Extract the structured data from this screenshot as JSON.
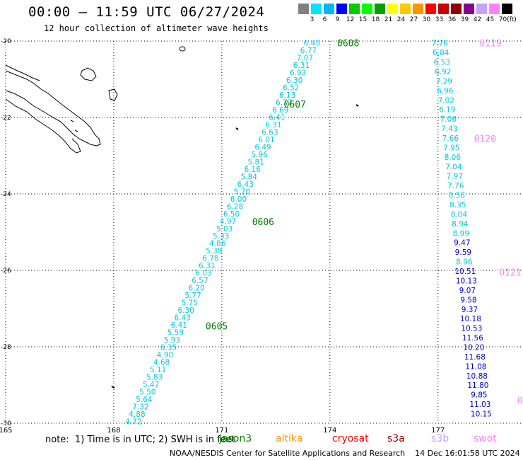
{
  "header": {
    "title": "00:00 – 11:59 UTC 06/27/2024",
    "subtitle": "12 hour collection of altimeter wave heights"
  },
  "colorbar": {
    "unit": "(ft)",
    "labels": [
      "3",
      "6",
      "9",
      "12",
      "15",
      "18",
      "21",
      "24",
      "27",
      "30",
      "33",
      "36",
      "39",
      "42",
      "45",
      "70"
    ],
    "colors": [
      "#808080",
      "#00e5ff",
      "#00b7ff",
      "#0000ff",
      "#00cc00",
      "#00ff00",
      "#00a000",
      "#ffff00",
      "#ffc800",
      "#ff9600",
      "#ff0000",
      "#c80000",
      "#900000",
      "#8b008b",
      "#c8a0ff",
      "#ff80ff",
      "#000000"
    ]
  },
  "map": {
    "lon_ticks": [
      "165",
      "168",
      "171",
      "174",
      "177"
    ],
    "lat_ticks": [
      "-20",
      "-22",
      "-24",
      "-26",
      "-28",
      "-30"
    ],
    "lon_range": [
      165,
      179.3
    ],
    "lat_range": [
      -20,
      -30
    ]
  },
  "passes": [
    {
      "id": "0608",
      "color": "#008000",
      "lon": 174.2,
      "lat": -20.05
    },
    {
      "id": "0607",
      "color": "#008000",
      "lon": 172.72,
      "lat": -21.65
    },
    {
      "id": "0606",
      "color": "#008000",
      "lon": 171.84,
      "lat": -24.72
    },
    {
      "id": "0605",
      "color": "#008000",
      "lon": 170.55,
      "lat": -27.45
    },
    {
      "id": "0119",
      "color": "#ff80ff",
      "lon": 178.15,
      "lat": -20.05
    },
    {
      "id": "0120",
      "color": "#ff80ff",
      "lon": 178.0,
      "lat": -22.55
    },
    {
      "id": "0121",
      "color": "#ff80ff",
      "lon": 178.7,
      "lat": -26.05
    },
    {
      "id": "0",
      "color": "#ff80ff",
      "lon": 179.2,
      "lat": -29.4
    }
  ],
  "tracks": [
    {
      "name": "track-0608",
      "start": [
        173.5,
        -20.05
      ],
      "end": [
        168.55,
        -29.95
      ],
      "values": [
        {
          "v": "6.45",
          "c": "#00c8e0"
        },
        {
          "v": "6.77",
          "c": "#00c8e0"
        },
        {
          "v": "7.07",
          "c": "#00c8e0"
        },
        {
          "v": "6.31",
          "c": "#00c8e0"
        },
        {
          "v": "6.93",
          "c": "#00c8e0"
        },
        {
          "v": "6.30",
          "c": "#00c8e0"
        },
        {
          "v": "6.52",
          "c": "#00c8e0"
        },
        {
          "v": "6.13",
          "c": "#00c8e0"
        },
        {
          "v": "6.77",
          "c": "#00c8e0"
        },
        {
          "v": "6.69",
          "c": "#00c8e0"
        },
        {
          "v": "6.41",
          "c": "#00c8e0"
        },
        {
          "v": "6.31",
          "c": "#00c8e0"
        },
        {
          "v": "6.63",
          "c": "#00c8e0"
        },
        {
          "v": "6.01",
          "c": "#00c8e0"
        },
        {
          "v": "6.49",
          "c": "#00c8e0"
        },
        {
          "v": "5.96",
          "c": "#00c8e0"
        },
        {
          "v": "5.81",
          "c": "#00c8e0"
        },
        {
          "v": "6.16",
          "c": "#00c8e0"
        },
        {
          "v": "5.84",
          "c": "#00c8e0"
        },
        {
          "v": "6.43",
          "c": "#00c8e0"
        },
        {
          "v": "5.70",
          "c": "#00c8e0"
        },
        {
          "v": "6.00",
          "c": "#00c8e0"
        },
        {
          "v": "6.28",
          "c": "#00c8e0"
        },
        {
          "v": "6.50",
          "c": "#00c8e0"
        },
        {
          "v": "4.97",
          "c": "#00c8e0"
        },
        {
          "v": "5.03",
          "c": "#00c8e0"
        },
        {
          "v": "5.33",
          "c": "#00c8e0"
        },
        {
          "v": "4.86",
          "c": "#00c8e0"
        },
        {
          "v": "5.38",
          "c": "#00c8e0"
        },
        {
          "v": "6.78",
          "c": "#00c8e0"
        },
        {
          "v": "6.31",
          "c": "#00c8e0"
        },
        {
          "v": "6.03",
          "c": "#00c8e0"
        },
        {
          "v": "6.57",
          "c": "#00c8e0"
        },
        {
          "v": "6.20",
          "c": "#00c8e0"
        },
        {
          "v": "5.77",
          "c": "#00c8e0"
        },
        {
          "v": "5.75",
          "c": "#00c8e0"
        },
        {
          "v": "6.30",
          "c": "#00c8e0"
        },
        {
          "v": "6.43",
          "c": "#00c8e0"
        },
        {
          "v": "6.41",
          "c": "#00c8e0"
        },
        {
          "v": "5.59",
          "c": "#00c8e0"
        },
        {
          "v": "5.93",
          "c": "#00c8e0"
        },
        {
          "v": "6.35",
          "c": "#00c8e0"
        },
        {
          "v": "4.90",
          "c": "#00c8e0"
        },
        {
          "v": "4.68",
          "c": "#00c8e0"
        },
        {
          "v": "5.11",
          "c": "#00c8e0"
        },
        {
          "v": "5.83",
          "c": "#00c8e0"
        },
        {
          "v": "5.47",
          "c": "#00c8e0"
        },
        {
          "v": "5.50",
          "c": "#00c8e0"
        },
        {
          "v": "5.64",
          "c": "#00c8e0"
        },
        {
          "v": "7.32",
          "c": "#00c8e0"
        },
        {
          "v": "4.88",
          "c": "#00c8e0"
        },
        {
          "v": "4.72",
          "c": "#00c8e0"
        }
      ]
    },
    {
      "name": "track-0119",
      "start": [
        177.05,
        -20.05
      ],
      "end": [
        178.2,
        -29.75
      ],
      "values": [
        {
          "v": "7.76",
          "c": "#00c8e0"
        },
        {
          "v": "6.84",
          "c": "#00c8e0"
        },
        {
          "v": "6.53",
          "c": "#00c8e0"
        },
        {
          "v": "6.92",
          "c": "#00c8e0"
        },
        {
          "v": "7.29",
          "c": "#00c8e0"
        },
        {
          "v": "6.96",
          "c": "#00c8e0"
        },
        {
          "v": "7.02",
          "c": "#00c8e0"
        },
        {
          "v": "6.19",
          "c": "#00c8e0"
        },
        {
          "v": "7.06",
          "c": "#00c8e0"
        },
        {
          "v": "7.43",
          "c": "#00c8e0"
        },
        {
          "v": "7.66",
          "c": "#00c8e0"
        },
        {
          "v": "7.95",
          "c": "#00c8e0"
        },
        {
          "v": "8.06",
          "c": "#00c8e0"
        },
        {
          "v": "7.04",
          "c": "#00c8e0"
        },
        {
          "v": "7.97",
          "c": "#00c8e0"
        },
        {
          "v": "7.76",
          "c": "#00c8e0"
        },
        {
          "v": "8.58",
          "c": "#00c8e0"
        },
        {
          "v": "8.35",
          "c": "#00c8e0"
        },
        {
          "v": "8.04",
          "c": "#00c8e0"
        },
        {
          "v": "8.94",
          "c": "#00c8e0"
        },
        {
          "v": "8.99",
          "c": "#00c8e0"
        },
        {
          "v": "9.47",
          "c": "#0000c8"
        },
        {
          "v": "9.59",
          "c": "#0000c8"
        },
        {
          "v": "8.96",
          "c": "#00c8e0"
        },
        {
          "v": "10.51",
          "c": "#0000c8"
        },
        {
          "v": "10.13",
          "c": "#0000c8"
        },
        {
          "v": "9.07",
          "c": "#0000c8"
        },
        {
          "v": "9.58",
          "c": "#0000c8"
        },
        {
          "v": "9.37",
          "c": "#0000c8"
        },
        {
          "v": "10.18",
          "c": "#0000c8"
        },
        {
          "v": "10.53",
          "c": "#0000c8"
        },
        {
          "v": "11.56",
          "c": "#0000c8"
        },
        {
          "v": "10.20",
          "c": "#0000c8"
        },
        {
          "v": "11.68",
          "c": "#0000c8"
        },
        {
          "v": "11.08",
          "c": "#0000c8"
        },
        {
          "v": "10.88",
          "c": "#0000c8"
        },
        {
          "v": "11.80",
          "c": "#0000c8"
        },
        {
          "v": "9.85",
          "c": "#0000c8"
        },
        {
          "v": "11.03",
          "c": "#0000c8"
        },
        {
          "v": "10.15",
          "c": "#0000c8"
        }
      ]
    }
  ],
  "note": {
    "text": "note:  1) Time is in UTC; 2) SWH is in feet",
    "missions": [
      {
        "label": "jason3",
        "color": "#008000"
      },
      {
        "label": "altika",
        "color": "#ff9600"
      },
      {
        "label": "cryosat",
        "color": "#ff0000"
      },
      {
        "label": "s3a",
        "color": "#8b0000"
      },
      {
        "label": "s3b",
        "color": "#c8a0ff"
      },
      {
        "label": "swot",
        "color": "#ff80ff"
      }
    ]
  },
  "credit": "NOAA/NESDIS Center for Satellite Applications and Research    14 Dec 16:01:58 UTC 2024"
}
